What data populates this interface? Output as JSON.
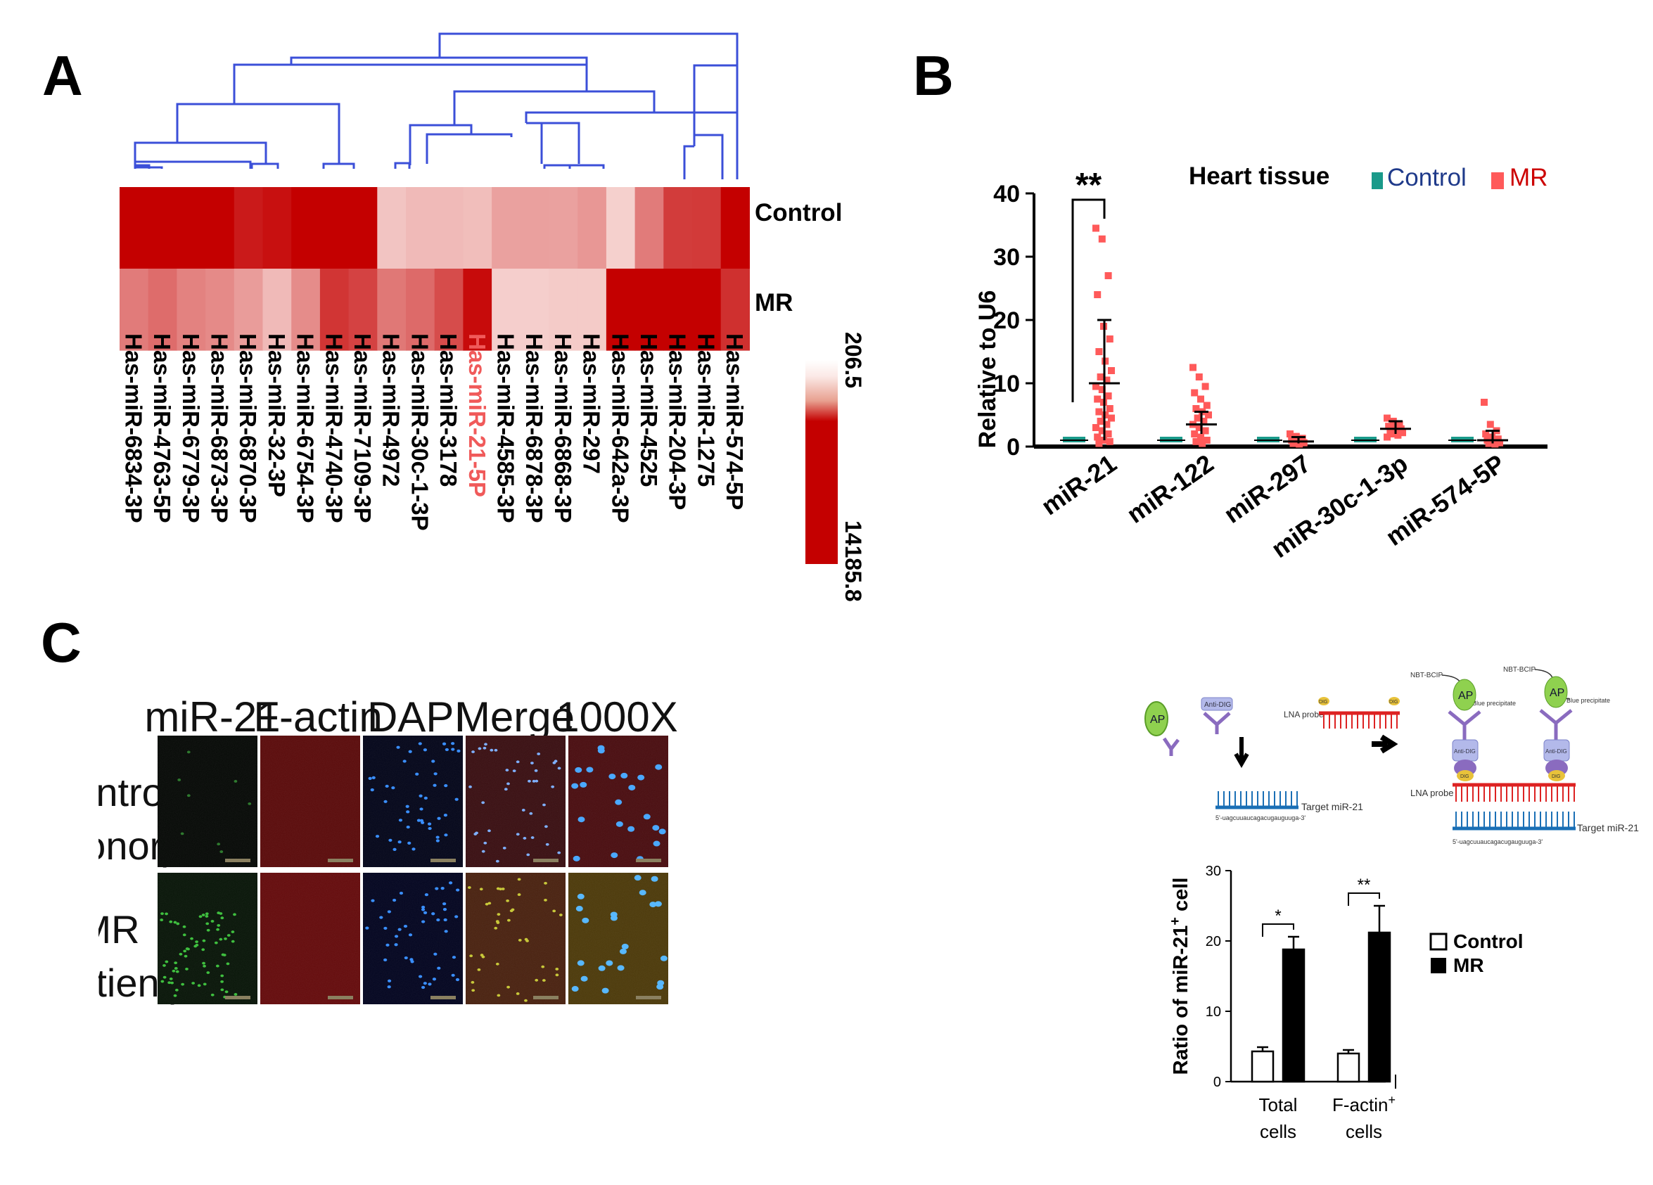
{
  "panels": {
    "a": "A",
    "b": "B",
    "c": "C"
  },
  "chart_data": [
    {
      "type": "heatmap",
      "rows": [
        "Control",
        "MR"
      ],
      "columns": [
        "Has-miR-6834-3P",
        "Has-miR-4763-5P",
        "Has-miR-6779-3P",
        "Has-miR-6873-3P",
        "Has-miR-6870-3P",
        "Has-miR-32-3P",
        "Has-miR-6754-3P",
        "Has-miR-4740-3P",
        "Has-miR-7109-3P",
        "Has-miR-4972",
        "Has-miR-30c-1-3P",
        "Has-miR-3178",
        "Has-miR-21-5P",
        "Has-miR-4585-3P",
        "Has-miR-6878-3P",
        "Has-miR-6868-3P",
        "Has-miR-297",
        "Has-miR-642a-3P",
        "Has-miR-4525",
        "Has-miR-204-3P",
        "Has-miR-1275",
        "Has-miR-574-5P"
      ],
      "highlight_column": "Has-miR-21-5P",
      "values": [
        [
          14185.8,
          14185.8,
          14185.8,
          14185.8,
          12600,
          13200,
          14185.8,
          14185.8,
          14185.8,
          2400,
          3000,
          3000,
          2800,
          4500,
          4600,
          4500,
          5100,
          1700,
          6800,
          10600,
          10700,
          14185.8
        ],
        [
          6800,
          7700,
          6400,
          5900,
          4800,
          3000,
          5800,
          11000,
          10200,
          7000,
          7800,
          9600,
          13500,
          1800,
          1800,
          2000,
          2000,
          14185.8,
          14185.8,
          14185.8,
          14185.8,
          11300
        ]
      ],
      "color_scale": {
        "min": 206.5,
        "max": 14185.8,
        "min_label": "206.5",
        "max_label": "14185.8",
        "min_color": "#fbe9e6",
        "max_color": "#c40000"
      }
    },
    {
      "type": "scatter",
      "title": "Heart tissue",
      "ylabel": "Relative to U6",
      "ylim": [
        0,
        40
      ],
      "yticks": [
        "0",
        "10",
        "20",
        "30",
        "40"
      ],
      "categories": [
        "miR-21",
        "miR-122",
        "miR-297",
        "miR-30c-1-3p",
        "miR-574-5P"
      ],
      "legend": {
        "title": "Heart tissue",
        "placement": "top-right"
      },
      "series": [
        {
          "name": "Control",
          "color": "#1a9a8a",
          "points": [
            [
              1,
              1,
              1,
              1,
              1,
              1
            ],
            [
              1,
              1,
              1,
              1,
              1,
              1
            ],
            [
              1,
              1,
              1,
              1,
              1,
              1
            ],
            [
              1,
              1,
              1,
              1,
              1,
              1
            ],
            [
              1,
              1,
              1,
              1,
              1,
              1
            ]
          ]
        },
        {
          "name": "MR",
          "color": "#ff5a5a",
          "points": [
            [
              34.5,
              32.8,
              27,
              24,
              19,
              17,
              15,
              13.5,
              12,
              11,
              10.5,
              9.5,
              9,
              8,
              7.5,
              7,
              6,
              5.5,
              5,
              4.5,
              4,
              3.5,
              3,
              2.5,
              2,
              1.5,
              1,
              0.8,
              0.5
            ],
            [
              12.5,
              11,
              9.5,
              8.5,
              7.5,
              6.5,
              6,
              5.5,
              5,
              4.5,
              4,
              3.5,
              3,
              2.5,
              2,
              1.5,
              1,
              0.8,
              0.5
            ],
            [
              2,
              1.6,
              1.3,
              1,
              0.8,
              0.6,
              0.5,
              0.4
            ],
            [
              4.5,
              4,
              3.5,
              3.2,
              3,
              2.8,
              2.6,
              2.4,
              2.2,
              2,
              1.8,
              1.5
            ],
            [
              7,
              3.5,
              2.5,
              2,
              1.5,
              1.2,
              1,
              0.8,
              0.6,
              0.5,
              0.4
            ]
          ],
          "means": [
            10,
            3.5,
            0.8,
            2.8,
            1
          ],
          "error_bars": [
            [
              1,
              20
            ],
            [
              2,
              5.5
            ],
            [
              0.5,
              1.5
            ],
            [
              2,
              4
            ],
            [
              0.5,
              2.5
            ]
          ]
        }
      ],
      "significance": [
        {
          "category": "miR-21",
          "label": "**"
        }
      ]
    },
    {
      "type": "bar",
      "ylabel": "Ratio of miR-21",
      "ylabel_sup": "+",
      "ylabel_suffix": " cell",
      "ylim": [
        0,
        30
      ],
      "yticks": [
        "0",
        "10",
        "20",
        "30"
      ],
      "categories": [
        {
          "line1": "Total",
          "line2": "cells",
          "sup": ""
        },
        {
          "line1": "F-actin",
          "line2": "cells",
          "sup": "+"
        }
      ],
      "series": [
        {
          "name": "Control",
          "values": [
            4.3,
            4.0
          ],
          "errors": [
            0.6,
            0.5
          ],
          "fill": "#ffffff"
        },
        {
          "name": "MR",
          "values": [
            18.8,
            21.2
          ],
          "errors": [
            1.8,
            3.8
          ],
          "fill": "#000000"
        }
      ],
      "significance": [
        "*",
        "**"
      ],
      "legend": {
        "placement": "right"
      }
    }
  ],
  "microscopy": {
    "column_headers": [
      "miR-21",
      "F-actin",
      "DAPI",
      "Merge",
      "1000X"
    ],
    "row_labels": [
      [
        "Control",
        "(Donor)"
      ],
      [
        "MR",
        "(Patient)"
      ]
    ]
  },
  "schematic": {
    "ap": "AP",
    "anti_dig": "Anti-DIG",
    "lna_probe": "LNA probe",
    "dig": "DIG",
    "target": "Target miR-21",
    "sequence": "5'-uagcuuaucagacugauguuga-3'",
    "nbt_bcip": "NBT-BCIP",
    "blue_precipitate": "Blue precipitate"
  }
}
